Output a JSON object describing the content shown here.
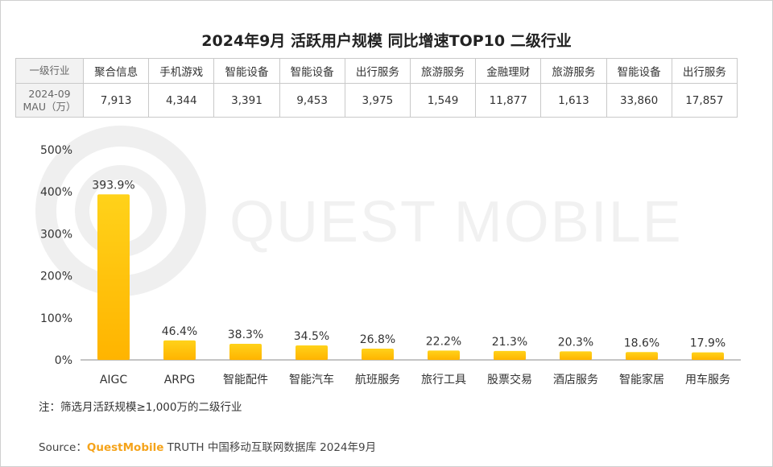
{
  "title": "2024年9月 活跃用户规模 同比增速TOP10 二级行业",
  "table": {
    "row1_header": "一级行业",
    "row2_header_line1": "2024-09",
    "row2_header_line2": "MAU（万）",
    "industries": [
      "聚合信息",
      "手机游戏",
      "智能设备",
      "智能设备",
      "出行服务",
      "旅游服务",
      "金融理财",
      "旅游服务",
      "智能设备",
      "出行服务"
    ],
    "mau": [
      "7,913",
      "4,344",
      "3,391",
      "9,453",
      "3,975",
      "1,549",
      "11,877",
      "1,613",
      "33,860",
      "17,857"
    ]
  },
  "chart_data": {
    "type": "bar",
    "title": "2024年9月 活跃用户规模 同比增速TOP10 二级行业",
    "categories": [
      "AIGC",
      "ARPG",
      "智能配件",
      "智能汽车",
      "航班服务",
      "旅行工具",
      "股票交易",
      "酒店服务",
      "智能家居",
      "用车服务"
    ],
    "values": [
      393.9,
      46.4,
      38.3,
      34.5,
      26.8,
      22.2,
      21.3,
      20.3,
      18.6,
      17.9
    ],
    "value_labels": [
      "393.9%",
      "46.4%",
      "38.3%",
      "34.5%",
      "26.8%",
      "22.2%",
      "21.3%",
      "20.3%",
      "18.6%",
      "17.9%"
    ],
    "highlight_index": 0,
    "highlight_color": "#e02020",
    "bar_color_top": "#ffd21a",
    "bar_color_bottom": "#ffb400",
    "ylim": [
      0,
      500
    ],
    "yticks": [
      0,
      100,
      200,
      300,
      400,
      500
    ],
    "ytick_labels": [
      "0%",
      "100%",
      "200%",
      "300%",
      "400%",
      "500%"
    ],
    "xlabel": "",
    "ylabel": "",
    "grid": false
  },
  "watermark": "QUEST MOBILE",
  "note": "注：筛选月活跃规模≥1,000万的二级行业",
  "source": {
    "prefix": "Source：",
    "brand": "QuestMobile",
    "suffix": " TRUTH 中国移动互联网数据库 2024年9月"
  }
}
